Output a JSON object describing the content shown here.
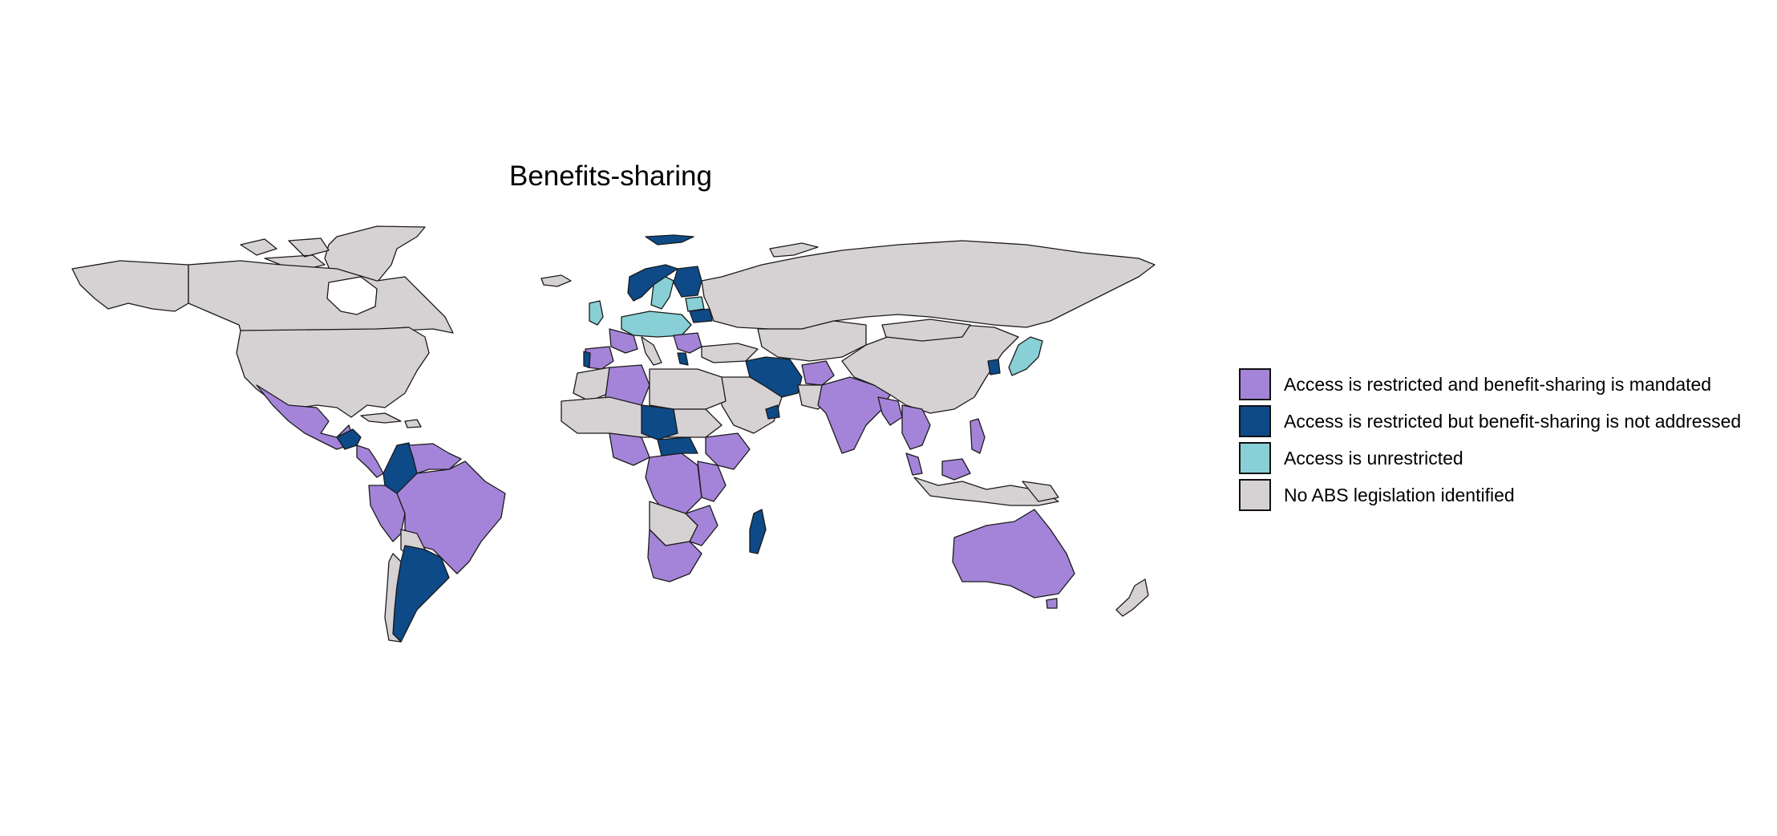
{
  "title": "Benefits-sharing",
  "colors": {
    "mandated": "#a484d8",
    "not_addressed": "#0d4a87",
    "unrestricted": "#88cfd6",
    "none": "#d6d2d4"
  },
  "legend": [
    {
      "key": "mandated",
      "label": "Access is restricted and benefit-sharing is mandated"
    },
    {
      "key": "not_addressed",
      "label": "Access is restricted but benefit-sharing is not addressed"
    },
    {
      "key": "unrestricted",
      "label": "Access is unrestricted"
    },
    {
      "key": "none",
      "label": "No ABS legislation identified"
    }
  ]
}
